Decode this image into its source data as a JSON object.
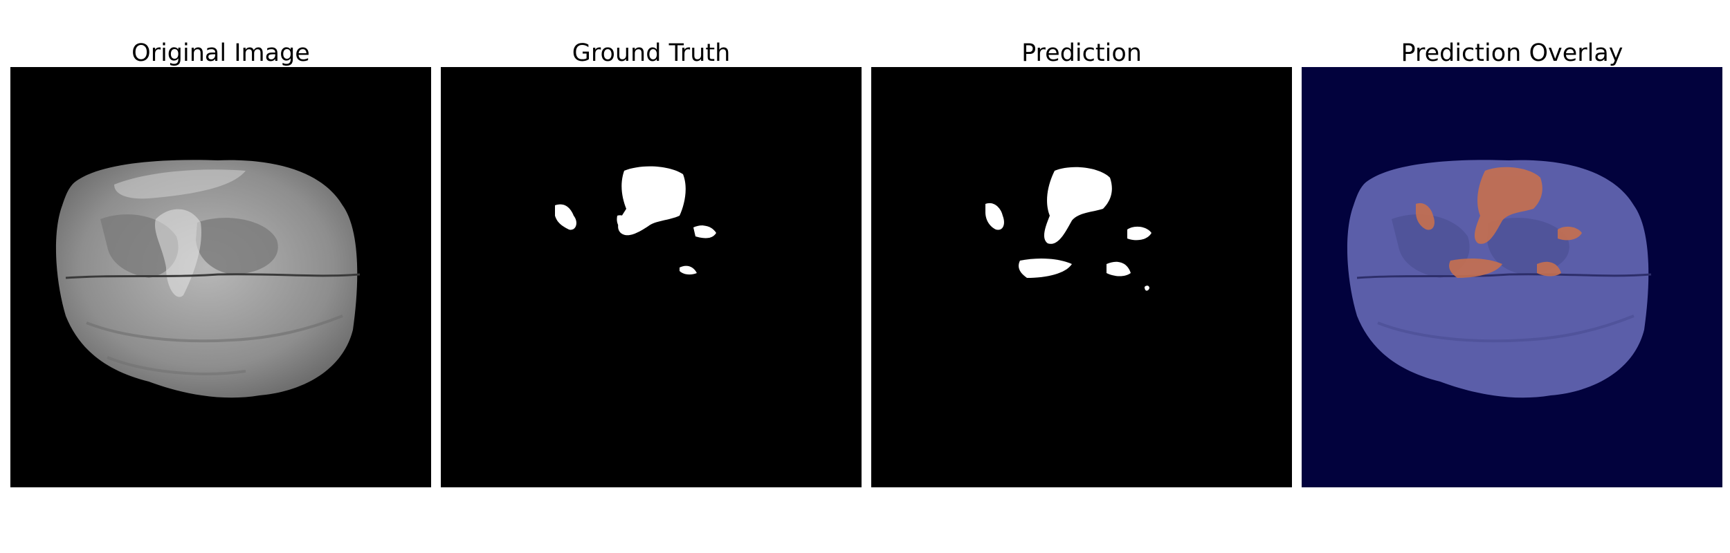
{
  "panels": [
    {
      "title": "Original Image"
    },
    {
      "title": "Ground Truth"
    },
    {
      "title": "Prediction"
    },
    {
      "title": "Prediction Overlay"
    }
  ],
  "colors": {
    "page_background": "#ffffff",
    "image_background": "#000000",
    "overlay_background": "#02023d",
    "mask": "#ffffff",
    "brain_overlay": "#5b5ea9",
    "tumor_overlay": "#c7704f"
  }
}
